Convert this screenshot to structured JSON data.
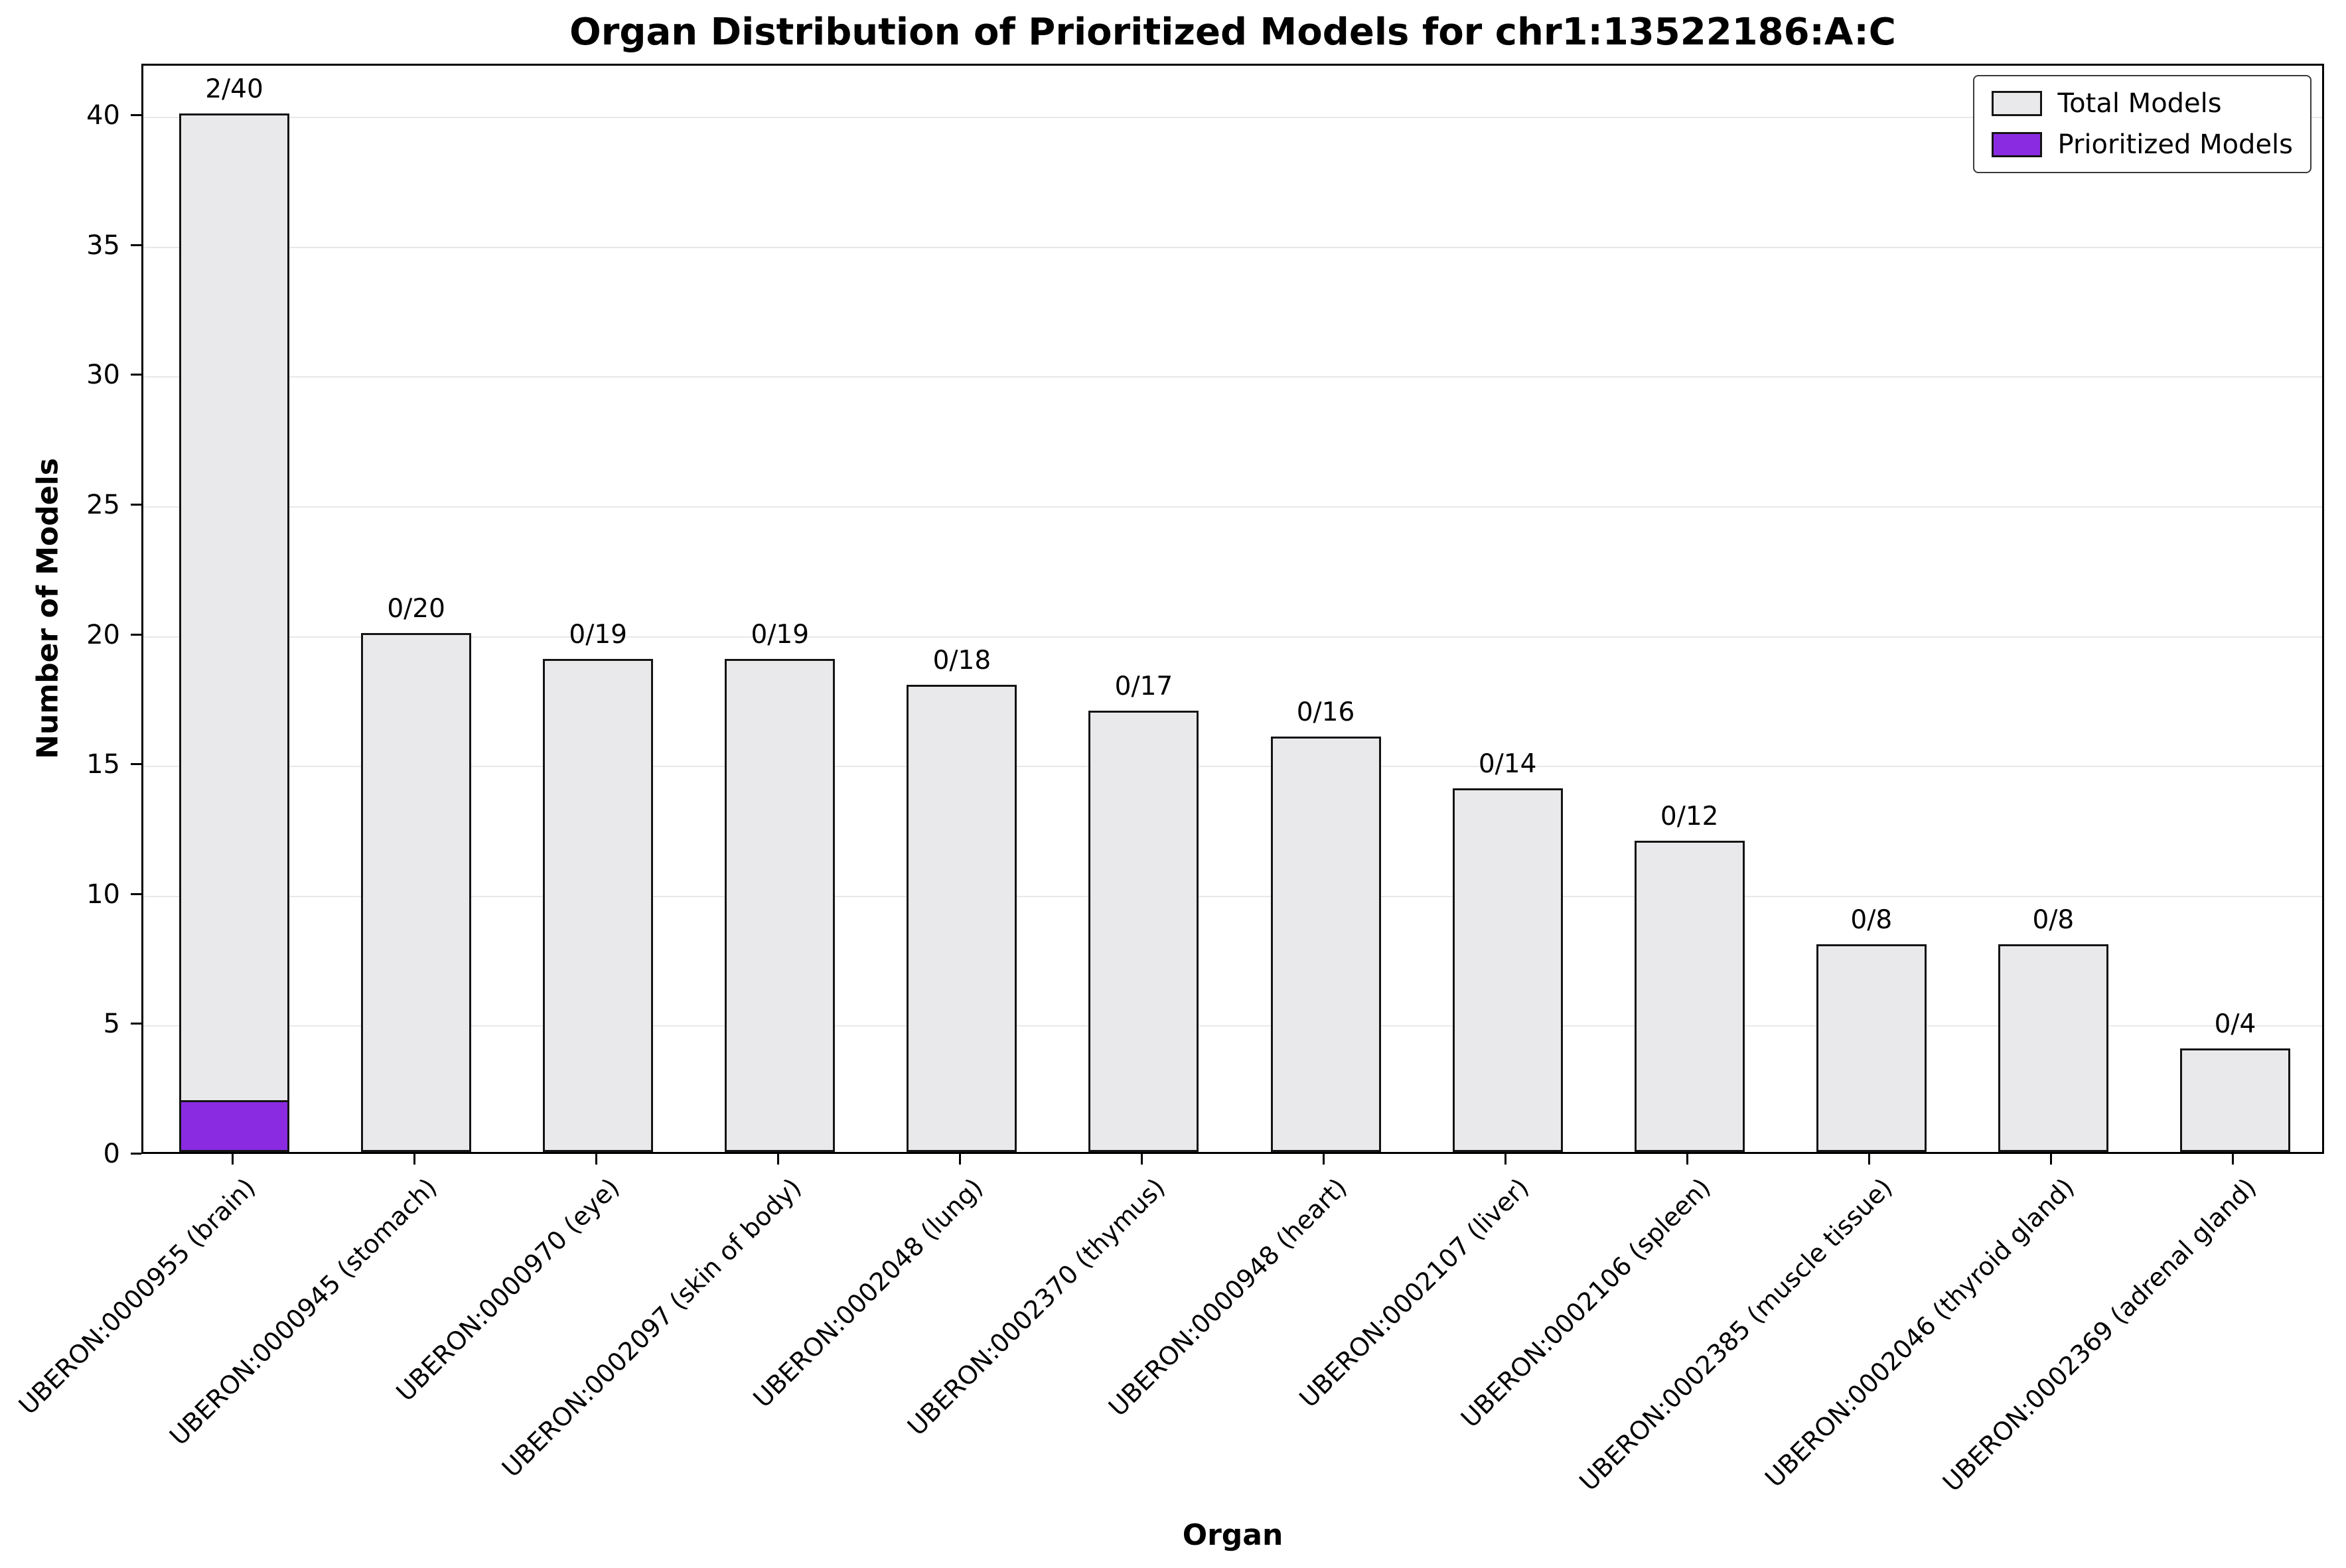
{
  "chart_data": {
    "type": "bar",
    "title": "Organ Distribution of Prioritized Models for chr1:13522186:A:C",
    "xlabel": "Organ",
    "ylabel": "Number of Models",
    "ylim": [
      0,
      42
    ],
    "yticks": [
      0,
      5,
      10,
      15,
      20,
      25,
      30,
      35,
      40
    ],
    "grid": "horizontal-light",
    "legend_position": "upper-right",
    "categories": [
      "UBERON:0000955 (brain)",
      "UBERON:0000945 (stomach)",
      "UBERON:0000970 (eye)",
      "UBERON:0002097 (skin of body)",
      "UBERON:0002048 (lung)",
      "UBERON:0002370 (thymus)",
      "UBERON:0000948 (heart)",
      "UBERON:0002107 (liver)",
      "UBERON:0002106 (spleen)",
      "UBERON:0002385 (muscle tissue)",
      "UBERON:0002046 (thyroid gland)",
      "UBERON:0002369 (adrenal gland)"
    ],
    "series": [
      {
        "name": "Total Models",
        "color": "#e9e9ec",
        "values": [
          40,
          20,
          19,
          19,
          18,
          17,
          16,
          14,
          12,
          8,
          8,
          4
        ]
      },
      {
        "name": "Prioritized Models",
        "color": "#8a2be2",
        "values": [
          2,
          0,
          0,
          0,
          0,
          0,
          0,
          0,
          0,
          0,
          0,
          0
        ]
      }
    ],
    "bar_labels": [
      "2/40",
      "0/20",
      "0/19",
      "0/19",
      "0/18",
      "0/17",
      "0/16",
      "0/14",
      "0/12",
      "0/8",
      "0/8",
      "0/4"
    ],
    "edge_color": "#141414",
    "grid_color": "#e8e8e8"
  }
}
